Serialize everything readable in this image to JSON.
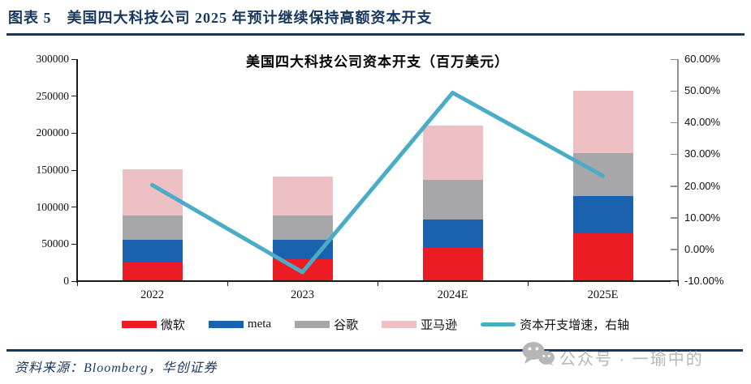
{
  "header": {
    "title": "图表 5　美国四大科技公司 2025 年预计继续保持高额资本开支"
  },
  "chart_data": {
    "type": "bar",
    "subtype": "stacked-bars-with-line",
    "title": "美国四大科技公司资本开支（百万美元）",
    "categories": [
      "2022",
      "2023",
      "2024E",
      "2025E"
    ],
    "series": [
      {
        "name": "微软",
        "color": "#EC1C24",
        "values": [
          24000,
          28000,
          44000,
          63000
        ]
      },
      {
        "name": "meta",
        "color": "#1B62AE",
        "values": [
          31000,
          27000,
          38000,
          51000
        ]
      },
      {
        "name": "谷歌",
        "color": "#A7A7AA",
        "values": [
          33000,
          33000,
          54000,
          58000
        ]
      },
      {
        "name": "亚马逊",
        "color": "#EDC0C3",
        "values": [
          62000,
          52000,
          73000,
          84000
        ]
      }
    ],
    "stacked_totals": [
      150000,
      140000,
      209000,
      256000
    ],
    "line_series": {
      "name": "资本开支增速，右轴",
      "color": "#4BACC6",
      "axis": "right",
      "values_percent": [
        20.3,
        -7.2,
        49.4,
        23.2
      ]
    },
    "left_axis": {
      "min": 0,
      "max": 300000,
      "tick_labels": [
        "300000",
        "250000",
        "200000",
        "150000",
        "100000",
        "50000",
        "0"
      ]
    },
    "right_axis": {
      "min": -10,
      "max": 60,
      "tick_labels": [
        "60.00%",
        "50.00%",
        "40.00%",
        "30.00%",
        "20.00%",
        "10.00%",
        "0.00%",
        "-10.00%"
      ]
    },
    "grid": false,
    "legend_position": "bottom"
  },
  "footer": {
    "source": "资料来源：Bloomberg，华创证券"
  },
  "watermark": {
    "icon": "wechat-icon",
    "text": "公众号 · 一瑜中的"
  },
  "colors": {
    "accent_navy": "#17375E",
    "axis_primary": "#1A1A1A",
    "axis_secondary": "#909090",
    "watermark_gray": "#B7B7B7"
  }
}
